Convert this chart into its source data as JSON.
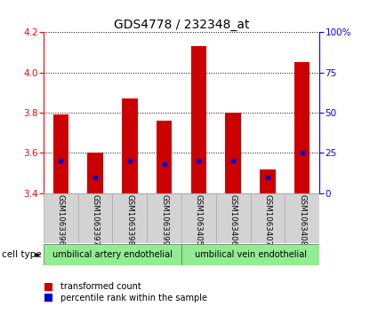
{
  "title": "GDS4778 / 232348_at",
  "samples": [
    "GSM1063396",
    "GSM1063397",
    "GSM1063398",
    "GSM1063399",
    "GSM1063405",
    "GSM1063406",
    "GSM1063407",
    "GSM1063408"
  ],
  "bar_values": [
    3.79,
    3.6,
    3.87,
    3.76,
    4.13,
    3.8,
    3.52,
    4.05
  ],
  "bar_bottom": 3.4,
  "percentile_ranks": [
    20,
    10,
    20,
    18,
    20,
    20,
    10,
    25
  ],
  "ylim_left": [
    3.4,
    4.2
  ],
  "ylim_right": [
    0,
    100
  ],
  "yticks_left": [
    3.4,
    3.6,
    3.8,
    4.0,
    4.2
  ],
  "yticks_right": [
    0,
    25,
    50,
    75,
    100
  ],
  "bar_color": "#cc0000",
  "dot_color": "#0000cc",
  "cell_type_groups": [
    {
      "label": "umbilical artery endothelial",
      "start": 0,
      "end": 4,
      "color": "#90ee90"
    },
    {
      "label": "umbilical vein endothelial",
      "start": 4,
      "end": 8,
      "color": "#90ee90"
    }
  ],
  "legend_items": [
    {
      "label": "transformed count",
      "color": "#cc0000"
    },
    {
      "label": "percentile rank within the sample",
      "color": "#0000cc"
    }
  ],
  "cell_type_label": "cell type",
  "title_fontsize": 10,
  "tick_fontsize": 7.5,
  "bar_width": 0.45
}
